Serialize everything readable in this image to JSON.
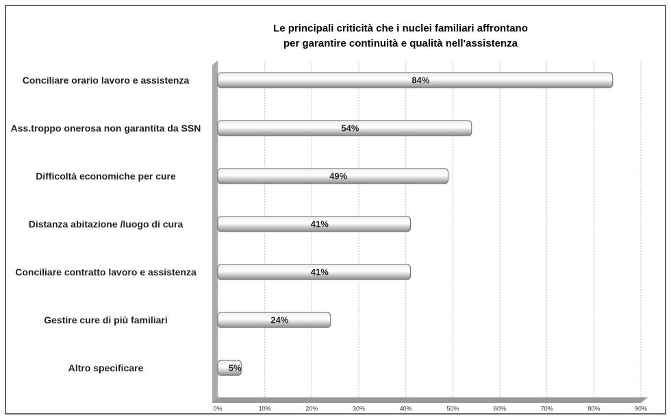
{
  "chart_data": {
    "type": "hbar",
    "title": [
      "Le principali criticità che i nuclei familiari affrontano",
      "per garantire continuità e qualità nell'assistenza"
    ],
    "categories": [
      "Conciliare orario lavoro e assistenza",
      "Ass.troppo onerosa non garantita da SSN",
      "Difficoltà economiche per cure",
      "Distanza abitazione /luogo di cura",
      "Conciliare contratto lavoro e assistenza",
      "Gestire cure di più familiari",
      "Altro specificare"
    ],
    "values": [
      84,
      54,
      49,
      41,
      41,
      24,
      5
    ],
    "value_labels": [
      "84%",
      "54%",
      "49%",
      "41%",
      "41%",
      "24%",
      "5%"
    ],
    "color": "#b5b5b5",
    "xlim": [
      0,
      90
    ],
    "xticks": [
      {
        "value": 0,
        "label": "0%"
      },
      {
        "value": 10,
        "label": "10%"
      },
      {
        "value": 20,
        "label": "20%"
      },
      {
        "value": 30,
        "label": "30%"
      },
      {
        "value": 40,
        "label": "40%"
      },
      {
        "value": 50,
        "label": "50%"
      },
      {
        "value": 60,
        "label": "60%"
      },
      {
        "value": 70,
        "label": "70%"
      },
      {
        "value": 80,
        "label": "80%"
      },
      {
        "value": 90,
        "label": "90%"
      }
    ],
    "grid": true
  }
}
